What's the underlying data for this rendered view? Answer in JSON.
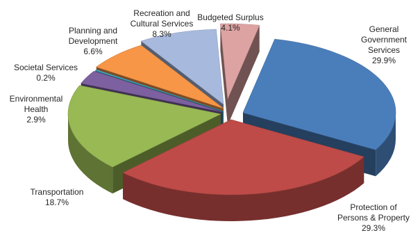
{
  "chart_data": {
    "type": "pie",
    "style": "3d-exploded",
    "title": "",
    "categories": [
      "General Government Services",
      "Protection of Persons & Property",
      "Transportation",
      "Environmental Health",
      "Societal Services",
      "Planning and Development",
      "Recreation and Cultural Services",
      "Budgeted Surplus"
    ],
    "values": [
      29.9,
      29.3,
      18.7,
      2.9,
      0.2,
      6.6,
      8.3,
      4.1
    ],
    "colors": [
      "#4a7ebb",
      "#be4b48",
      "#98b954",
      "#7d60a0",
      "#46aac5",
      "#f79646",
      "#a7b9dd",
      "#dda3a2"
    ],
    "label_lines": [
      [
        "General",
        "Government",
        "Services",
        "29.9%"
      ],
      [
        "Protection of",
        "Persons & Property",
        "29.3%"
      ],
      [
        "Transportation",
        "18.7%"
      ],
      [
        "Environmental",
        "Health",
        "2.9%"
      ],
      [
        "Societal Services",
        "0.2%"
      ],
      [
        "Planning and",
        "Development",
        "6.6%"
      ],
      [
        "Recreation and",
        "Cultural Services",
        "8.3%"
      ],
      [
        "Budgeted Surplus",
        "4.1%"
      ]
    ],
    "legend": "none"
  }
}
